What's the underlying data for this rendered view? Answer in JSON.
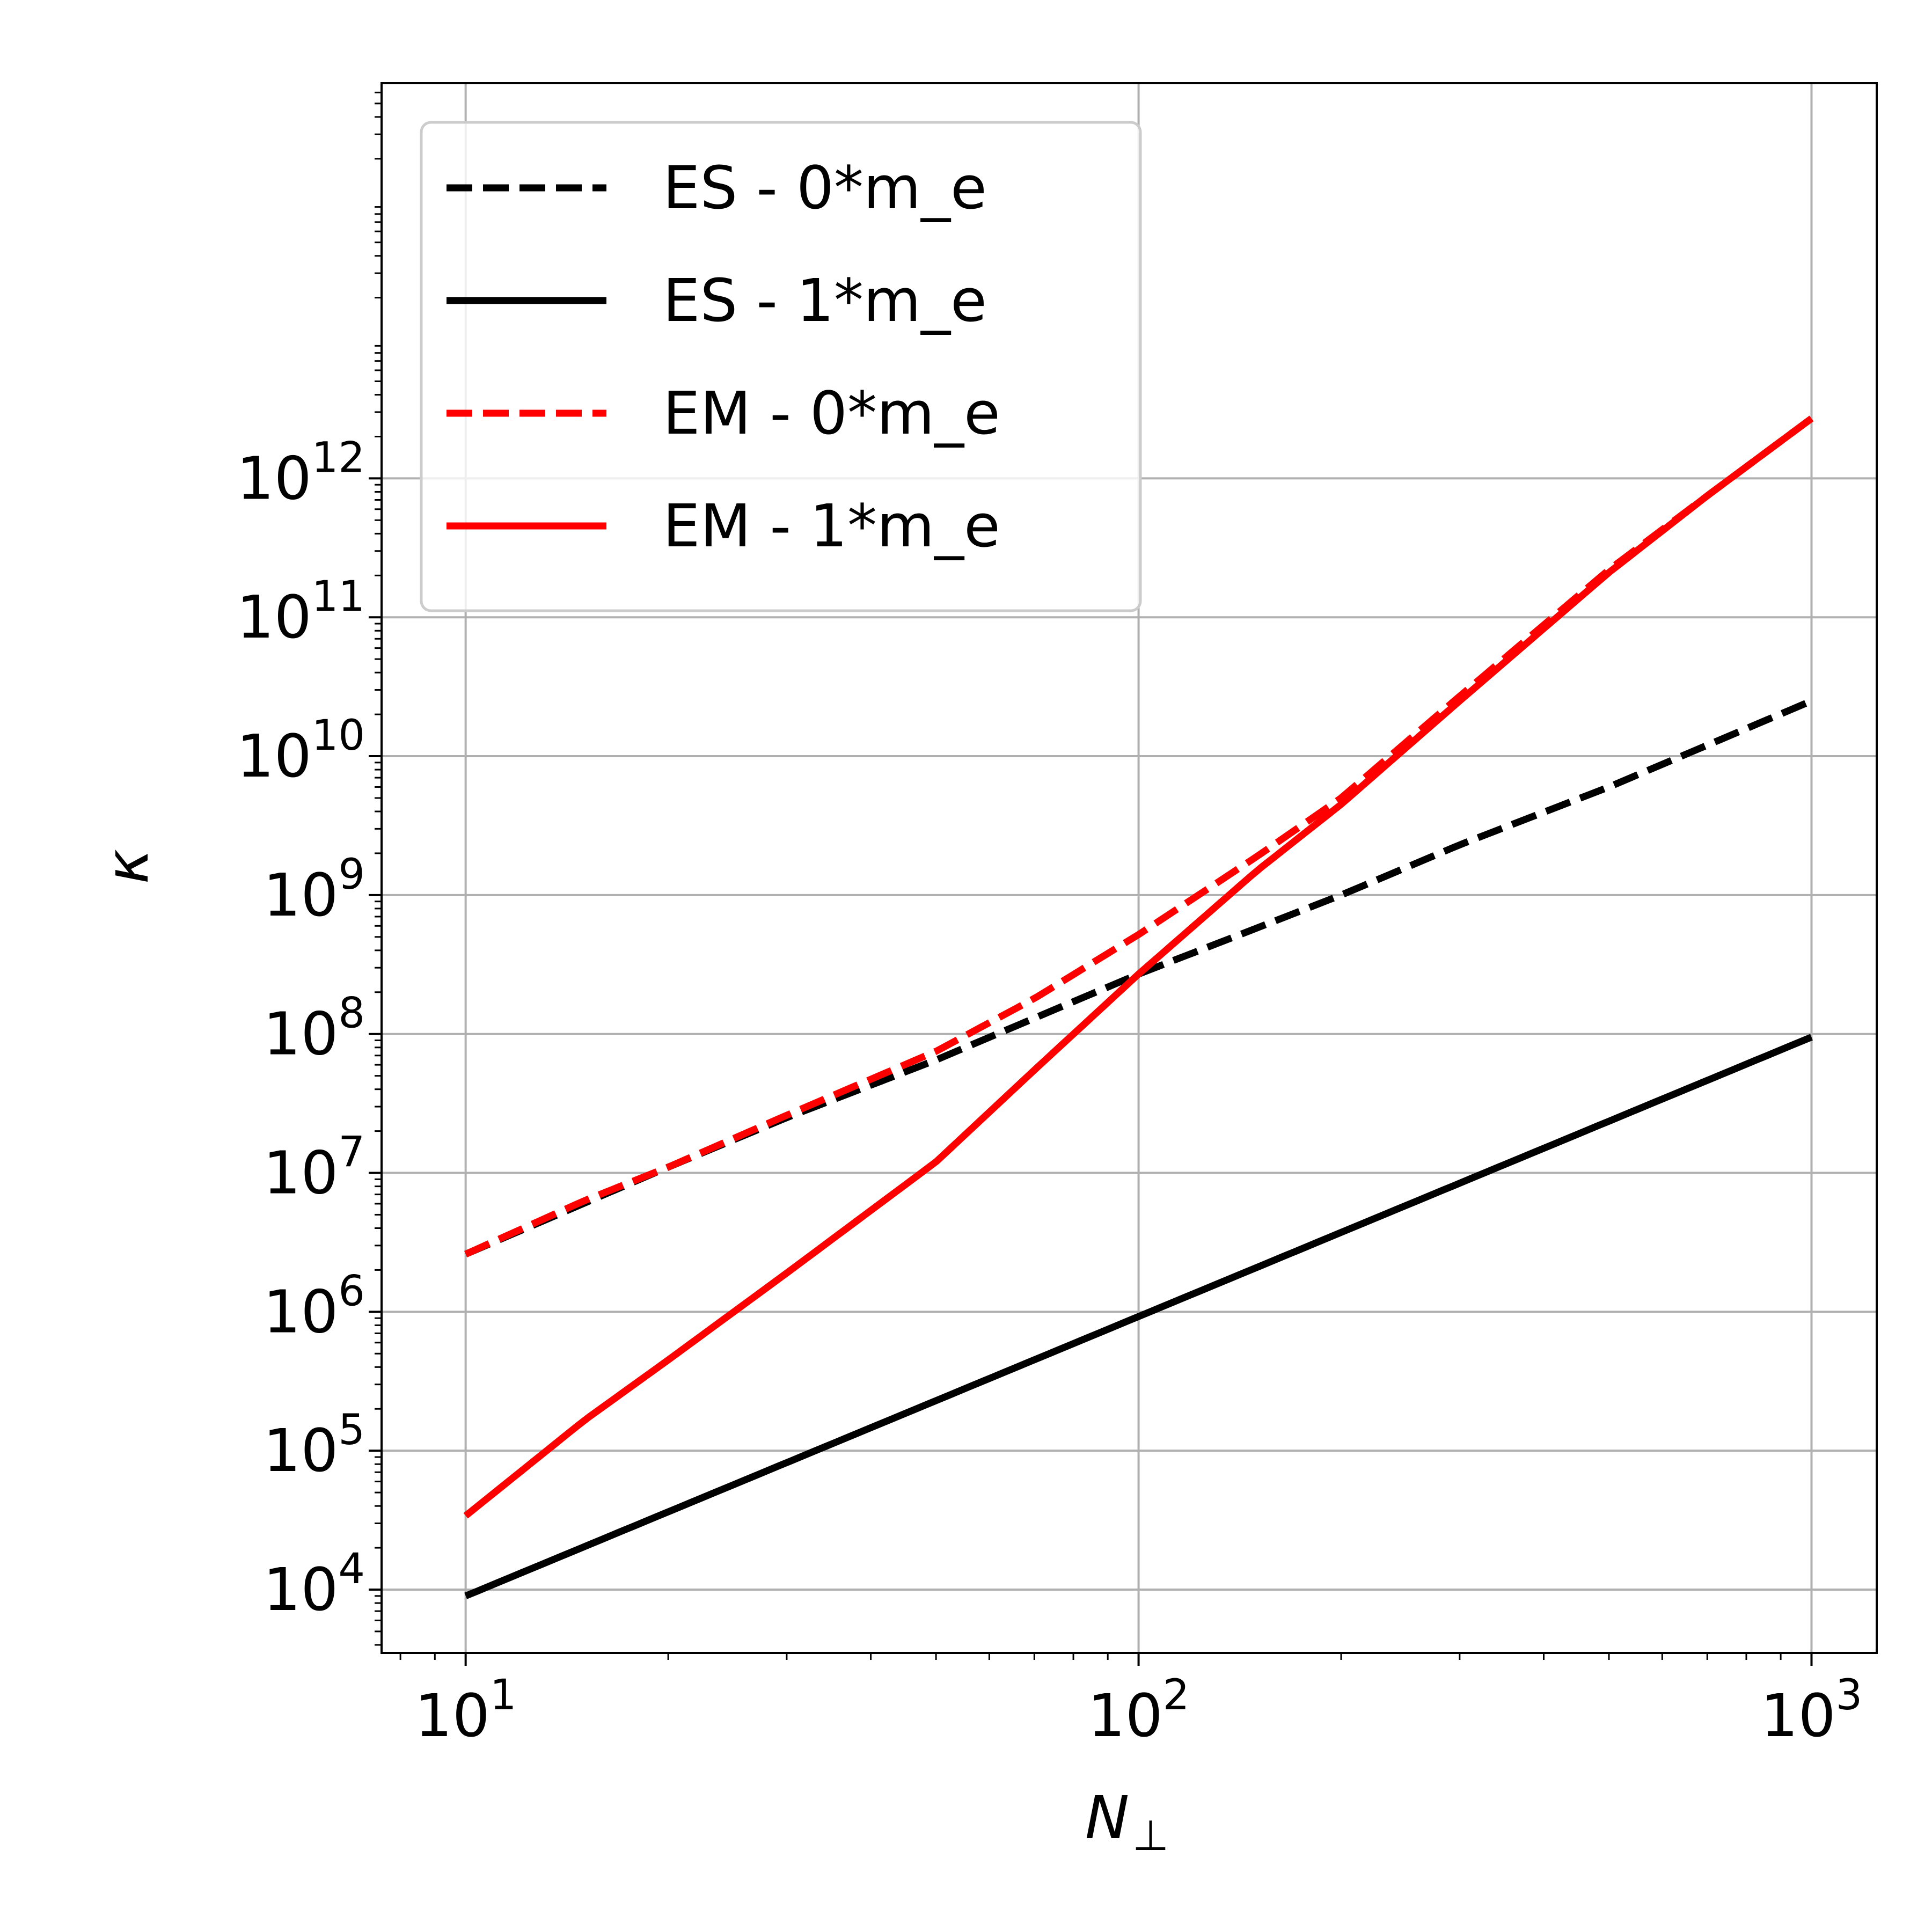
{
  "chart_data": {
    "type": "line",
    "xscale": "log",
    "yscale": "log",
    "xlabel": "N",
    "xlabel_sub": "⊥",
    "ylabel": "κ",
    "xlim": [
      7.5,
      1250
    ],
    "ylim": [
      3500,
      700000000000000
    ],
    "grid": true,
    "legend": "upper-left",
    "x_ticks": [
      {
        "value": 10,
        "base": "10",
        "exp": "1"
      },
      {
        "value": 100,
        "base": "10",
        "exp": "2"
      },
      {
        "value": 1000,
        "base": "10",
        "exp": "3"
      }
    ],
    "y_ticks": [
      {
        "value": 10000,
        "base": "10",
        "exp": "4"
      },
      {
        "value": 100000,
        "base": "10",
        "exp": "5"
      },
      {
        "value": 1000000,
        "base": "10",
        "exp": "6"
      },
      {
        "value": 10000000,
        "base": "10",
        "exp": "7"
      },
      {
        "value": 100000000,
        "base": "10",
        "exp": "8"
      },
      {
        "value": 1000000000,
        "base": "10",
        "exp": "9"
      },
      {
        "value": 10000000000,
        "base": "10",
        "exp": "10"
      },
      {
        "value": 100000000000,
        "base": "10",
        "exp": "11"
      },
      {
        "value": 1000000000000,
        "base": "10",
        "exp": "12"
      }
    ],
    "series": [
      {
        "name": "ES - 0*m_e",
        "color": "#000000",
        "style": "dashed",
        "x": [
          10,
          20,
          30,
          50,
          70,
          100,
          150,
          200,
          300,
          500,
          700,
          1000
        ],
        "y": [
          2600000,
          11000000,
          25000000,
          65000000,
          130000000,
          270000000,
          580000000,
          1000000000,
          2300000000,
          6000000000,
          12000000000,
          25000000000
        ]
      },
      {
        "name": "ES - 1*m_e",
        "color": "#000000",
        "style": "solid",
        "x": [
          10,
          1000
        ],
        "y": [
          9000,
          95000000
        ]
      },
      {
        "name": "EM - 0*m_e",
        "color": "#ff0000",
        "style": "dashed",
        "x": [
          10,
          15,
          20,
          30,
          50,
          70,
          100,
          150,
          200,
          300,
          500,
          700,
          1000
        ],
        "y": [
          2600000,
          6300000,
          11000000,
          26000000,
          75000000,
          180000000,
          520000000,
          1900000000,
          5000000000,
          27000000000,
          220000000000,
          750000000000,
          2700000000000
        ]
      },
      {
        "name": "EM - 1*m_e",
        "color": "#ff0000",
        "style": "solid",
        "x": [
          10,
          15,
          20,
          30,
          50,
          70,
          100,
          150,
          200,
          300,
          500,
          700,
          1000
        ],
        "y": [
          34000,
          165000,
          450000,
          1900000,
          12000000,
          55000000,
          270000000,
          1500000000,
          4500000000,
          25000000000,
          210000000000,
          750000000000,
          2700000000000
        ]
      }
    ]
  }
}
